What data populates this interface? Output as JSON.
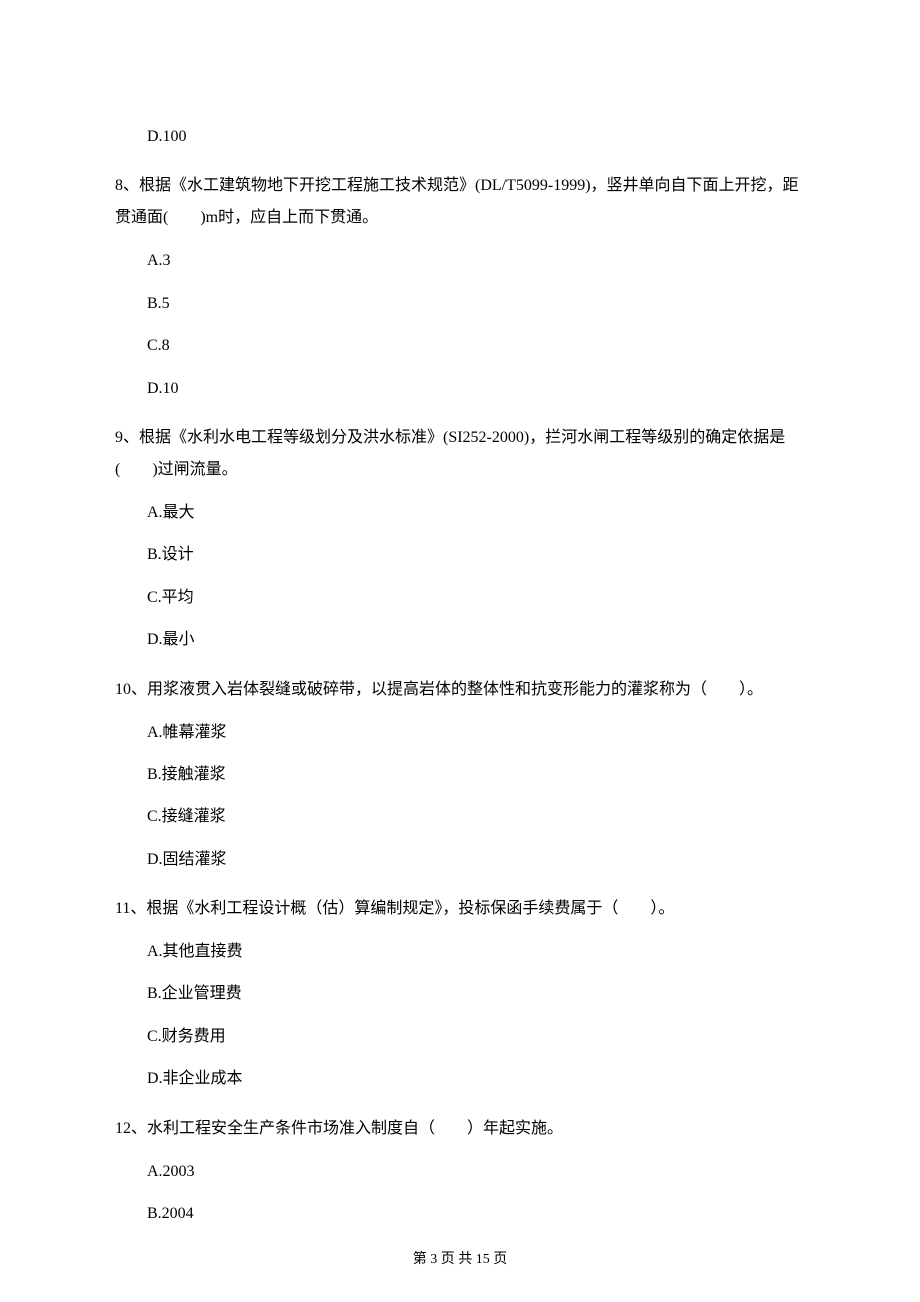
{
  "q7_option_d": "D.100",
  "q8_stem": "8、根据《水工建筑物地下开挖工程施工技术规范》(DL/T5099-1999)，竖井单向自下面上开挖，距贯通面(　　)m时，应自上而下贯通。",
  "q8_a": "A.3",
  "q8_b": "B.5",
  "q8_c": "C.8",
  "q8_d": "D.10",
  "q9_stem": "9、根据《水利水电工程等级划分及洪水标准》(SI252-2000)，拦河水闸工程等级别的确定依据是(　　)过闸流量。",
  "q9_a": "A.最大",
  "q9_b": "B.设计",
  "q9_c": "C.平均",
  "q9_d": "D.最小",
  "q10_stem": "10、用浆液贯入岩体裂缝或破碎带，以提高岩体的整体性和抗变形能力的灌浆称为（　　）。",
  "q10_a": "A.帷幕灌浆",
  "q10_b": "B.接触灌浆",
  "q10_c": "C.接缝灌浆",
  "q10_d": "D.固结灌浆",
  "q11_stem": "11、根据《水利工程设计概（估）算编制规定》，投标保函手续费属于（　　）。",
  "q11_a": "A.其他直接费",
  "q11_b": "B.企业管理费",
  "q11_c": "C.财务费用",
  "q11_d": "D.非企业成本",
  "q12_stem": "12、水利工程安全生产条件市场准入制度自（　　）年起实施。",
  "q12_a": "A.2003",
  "q12_b": "B.2004",
  "footer": "第 3 页 共 15 页"
}
